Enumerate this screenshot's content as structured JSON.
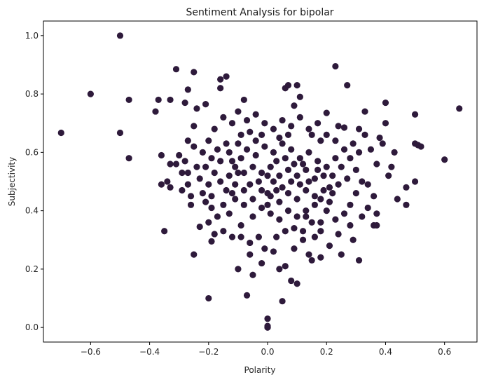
{
  "chart_data": {
    "type": "scatter",
    "title": "Sentiment Analysis for bipolar",
    "xlabel": "Polarity",
    "ylabel": "Subjectivity",
    "xlim": [
      -0.76,
      0.71
    ],
    "ylim": [
      -0.05,
      1.05
    ],
    "xticks": [
      -0.6,
      -0.4,
      -0.2,
      0.0,
      0.2,
      0.4,
      0.6
    ],
    "xtick_labels": [
      "−0.6",
      "−0.4",
      "−0.2",
      "0.0",
      "0.2",
      "0.4",
      "0.6"
    ],
    "yticks": [
      0.0,
      0.2,
      0.4,
      0.6,
      0.8,
      1.0
    ],
    "ytick_labels": [
      "0.0",
      "0.2",
      "0.4",
      "0.6",
      "0.8",
      "1.0"
    ],
    "grid": false,
    "marker_color": "#2e1a3b",
    "points": [
      [
        -0.5,
        1.0
      ],
      [
        -0.6,
        0.8
      ],
      [
        -0.7,
        0.667
      ],
      [
        -0.5,
        0.667
      ],
      [
        -0.47,
        0.78
      ],
      [
        -0.47,
        0.58
      ],
      [
        -0.38,
        0.74
      ],
      [
        -0.37,
        0.78
      ],
      [
        -0.36,
        0.59
      ],
      [
        -0.36,
        0.49
      ],
      [
        -0.35,
        0.33
      ],
      [
        -0.34,
        0.5
      ],
      [
        -0.33,
        0.78
      ],
      [
        -0.33,
        0.48
      ],
      [
        -0.33,
        0.56
      ],
      [
        -0.31,
        0.885
      ],
      [
        -0.3,
        0.59
      ],
      [
        -0.29,
        0.47
      ],
      [
        -0.28,
        0.77
      ],
      [
        -0.27,
        0.815
      ],
      [
        -0.27,
        0.53
      ],
      [
        -0.26,
        0.42
      ],
      [
        -0.25,
        0.875
      ],
      [
        -0.25,
        0.69
      ],
      [
        -0.25,
        0.25
      ],
      [
        -0.24,
        0.75
      ],
      [
        -0.23,
        0.345
      ],
      [
        -0.21,
        0.765
      ],
      [
        -0.2,
        0.1
      ],
      [
        -0.19,
        0.295
      ],
      [
        -0.16,
        0.85
      ],
      [
        -0.16,
        0.82
      ],
      [
        -0.14,
        0.86
      ],
      [
        -0.1,
        0.2
      ],
      [
        -0.08,
        0.78
      ],
      [
        -0.07,
        0.11
      ],
      [
        -0.05,
        0.18
      ],
      [
        -0.02,
        0.22
      ],
      [
        0.0,
        0.0
      ],
      [
        0.0,
        0.0
      ],
      [
        0.0,
        0.03
      ],
      [
        0.0,
        0.005
      ],
      [
        0.05,
        0.09
      ],
      [
        0.06,
        0.82
      ],
      [
        0.07,
        0.83
      ],
      [
        0.09,
        0.76
      ],
      [
        0.1,
        0.83
      ],
      [
        0.11,
        0.79
      ],
      [
        0.15,
        0.23
      ],
      [
        0.13,
        0.38
      ],
      [
        0.06,
        0.21
      ],
      [
        0.08,
        0.16
      ],
      [
        0.1,
        0.15
      ],
      [
        0.18,
        0.24
      ],
      [
        0.23,
        0.895
      ],
      [
        0.27,
        0.83
      ],
      [
        0.25,
        0.25
      ],
      [
        0.31,
        0.23
      ],
      [
        0.2,
        0.735
      ],
      [
        0.26,
        0.685
      ],
      [
        0.36,
        0.35
      ],
      [
        0.37,
        0.39
      ],
      [
        0.37,
        0.35
      ],
      [
        0.4,
        0.77
      ],
      [
        0.42,
        0.55
      ],
      [
        0.43,
        0.6
      ],
      [
        0.47,
        0.48
      ],
      [
        0.47,
        0.42
      ],
      [
        0.5,
        0.73
      ],
      [
        0.5,
        0.63
      ],
      [
        0.51,
        0.625
      ],
      [
        0.52,
        0.62
      ],
      [
        0.5,
        0.5
      ],
      [
        0.6,
        0.575
      ],
      [
        0.65,
        0.75
      ],
      [
        0.34,
        0.49
      ],
      [
        0.38,
        0.65
      ],
      [
        0.41,
        0.52
      ],
      [
        0.44,
        0.44
      ],
      [
        0.33,
        0.66
      ],
      [
        0.31,
        0.68
      ],
      [
        0.29,
        0.3
      ],
      [
        0.28,
        0.35
      ],
      [
        0.24,
        0.32
      ],
      [
        0.21,
        0.28
      ],
      [
        0.18,
        0.36
      ],
      [
        0.16,
        0.31
      ],
      [
        0.14,
        0.25
      ],
      [
        0.12,
        0.3
      ],
      [
        0.09,
        0.27
      ],
      [
        0.04,
        0.2
      ],
      [
        0.02,
        0.26
      ],
      [
        -0.01,
        0.27
      ],
      [
        -0.03,
        0.31
      ],
      [
        -0.06,
        0.25
      ],
      [
        -0.09,
        0.35
      ],
      [
        -0.12,
        0.31
      ],
      [
        -0.15,
        0.33
      ],
      [
        -0.17,
        0.38
      ],
      [
        -0.19,
        0.41
      ],
      [
        -0.21,
        0.43
      ],
      [
        -0.22,
        0.46
      ],
      [
        -0.23,
        0.51
      ],
      [
        -0.24,
        0.55
      ],
      [
        -0.22,
        0.6
      ],
      [
        -0.2,
        0.64
      ],
      [
        -0.18,
        0.68
      ],
      [
        -0.15,
        0.72
      ],
      [
        -0.12,
        0.7
      ],
      [
        -0.1,
        0.74
      ],
      [
        -0.07,
        0.71
      ],
      [
        -0.04,
        0.73
      ],
      [
        -0.01,
        0.7
      ],
      [
        0.02,
        0.68
      ],
      [
        0.05,
        0.71
      ],
      [
        0.08,
        0.69
      ],
      [
        0.11,
        0.72
      ],
      [
        0.14,
        0.68
      ],
      [
        0.17,
        0.7
      ],
      [
        0.2,
        0.66
      ],
      [
        0.23,
        0.64
      ],
      [
        0.26,
        0.61
      ],
      [
        0.28,
        0.58
      ],
      [
        0.3,
        0.54
      ],
      [
        0.32,
        0.5
      ],
      [
        0.3,
        0.46
      ],
      [
        0.28,
        0.42
      ],
      [
        0.26,
        0.39
      ],
      [
        0.23,
        0.37
      ],
      [
        0.2,
        0.4
      ],
      [
        0.16,
        0.42
      ],
      [
        0.13,
        0.4
      ],
      [
        0.1,
        0.38
      ],
      [
        0.07,
        0.4
      ],
      [
        0.04,
        0.37
      ],
      [
        0.01,
        0.39
      ],
      [
        -0.02,
        0.41
      ],
      [
        -0.05,
        0.38
      ],
      [
        -0.08,
        0.42
      ],
      [
        -0.11,
        0.44
      ],
      [
        -0.14,
        0.47
      ],
      [
        -0.16,
        0.5
      ],
      [
        -0.18,
        0.53
      ],
      [
        -0.16,
        0.57
      ],
      [
        -0.13,
        0.6
      ],
      [
        -0.1,
        0.63
      ],
      [
        -0.07,
        0.61
      ],
      [
        -0.04,
        0.64
      ],
      [
        -0.01,
        0.62
      ],
      [
        0.02,
        0.6
      ],
      [
        0.05,
        0.63
      ],
      [
        0.08,
        0.61
      ],
      [
        0.11,
        0.58
      ],
      [
        0.14,
        0.6
      ],
      [
        0.17,
        0.57
      ],
      [
        0.2,
        0.55
      ],
      [
        0.22,
        0.52
      ],
      [
        0.24,
        0.49
      ],
      [
        0.22,
        0.46
      ],
      [
        0.19,
        0.47
      ],
      [
        0.16,
        0.45
      ],
      [
        0.13,
        0.47
      ],
      [
        0.1,
        0.44
      ],
      [
        0.07,
        0.46
      ],
      [
        0.04,
        0.43
      ],
      [
        0.01,
        0.45
      ],
      [
        -0.02,
        0.47
      ],
      [
        -0.05,
        0.44
      ],
      [
        -0.08,
        0.47
      ],
      [
        -0.11,
        0.49
      ],
      [
        -0.13,
        0.52
      ],
      [
        -0.11,
        0.55
      ],
      [
        -0.08,
        0.53
      ],
      [
        -0.05,
        0.55
      ],
      [
        -0.02,
        0.53
      ],
      [
        0.01,
        0.55
      ],
      [
        0.04,
        0.52
      ],
      [
        0.07,
        0.54
      ],
      [
        0.1,
        0.52
      ],
      [
        0.13,
        0.54
      ],
      [
        0.16,
        0.51
      ],
      [
        0.19,
        0.52
      ],
      [
        0.02,
        0.5
      ],
      [
        0.05,
        0.48
      ],
      [
        0.08,
        0.5
      ],
      [
        -0.03,
        0.5
      ],
      [
        -0.06,
        0.49
      ],
      [
        0.11,
        0.49
      ],
      [
        0.14,
        0.5
      ],
      [
        0.0,
        0.52
      ],
      [
        0.03,
        0.57
      ],
      [
        0.06,
        0.58
      ],
      [
        -0.09,
        0.58
      ],
      [
        -0.12,
        0.57
      ],
      [
        0.09,
        0.56
      ],
      [
        0.12,
        0.56
      ],
      [
        -0.04,
        0.59
      ],
      [
        0.0,
        0.46
      ],
      [
        0.35,
        0.61
      ],
      [
        0.37,
        0.56
      ],
      [
        0.39,
        0.63
      ],
      [
        0.36,
        0.45
      ],
      [
        0.34,
        0.41
      ],
      [
        0.32,
        0.38
      ],
      [
        0.4,
        0.7
      ],
      [
        0.33,
        0.74
      ],
      [
        -0.28,
        0.57
      ],
      [
        -0.27,
        0.49
      ],
      [
        -0.26,
        0.45
      ],
      [
        -0.29,
        0.53
      ],
      [
        -0.31,
        0.56
      ],
      [
        -0.25,
        0.62
      ],
      [
        -0.27,
        0.64
      ],
      [
        -0.2,
        0.36
      ],
      [
        -0.18,
        0.32
      ],
      [
        -0.13,
        0.39
      ],
      [
        -0.09,
        0.31
      ],
      [
        -0.06,
        0.29
      ],
      [
        0.03,
        0.31
      ],
      [
        0.06,
        0.33
      ],
      [
        0.09,
        0.34
      ],
      [
        0.12,
        0.33
      ],
      [
        0.15,
        0.36
      ],
      [
        0.18,
        0.33
      ],
      [
        0.21,
        0.43
      ],
      [
        0.25,
        0.55
      ],
      [
        0.27,
        0.51
      ],
      [
        0.29,
        0.63
      ],
      [
        0.31,
        0.6
      ],
      [
        0.24,
        0.69
      ],
      [
        0.18,
        0.64
      ],
      [
        0.15,
        0.66
      ],
      [
        0.07,
        0.66
      ],
      [
        0.04,
        0.65
      ],
      [
        -0.02,
        0.66
      ],
      [
        -0.06,
        0.67
      ],
      [
        -0.09,
        0.66
      ],
      [
        -0.14,
        0.63
      ],
      [
        -0.17,
        0.61
      ],
      [
        -0.19,
        0.58
      ],
      [
        -0.21,
        0.55
      ],
      [
        -0.2,
        0.49
      ],
      [
        -0.19,
        0.45
      ],
      [
        -0.15,
        0.42
      ],
      [
        -0.12,
        0.46
      ],
      [
        0.18,
        0.44
      ],
      [
        0.21,
        0.48
      ],
      [
        0.23,
        0.58
      ],
      [
        0.17,
        0.54
      ],
      [
        -0.1,
        0.53
      ],
      [
        0.0,
        0.42
      ],
      [
        0.03,
        0.47
      ]
    ]
  }
}
